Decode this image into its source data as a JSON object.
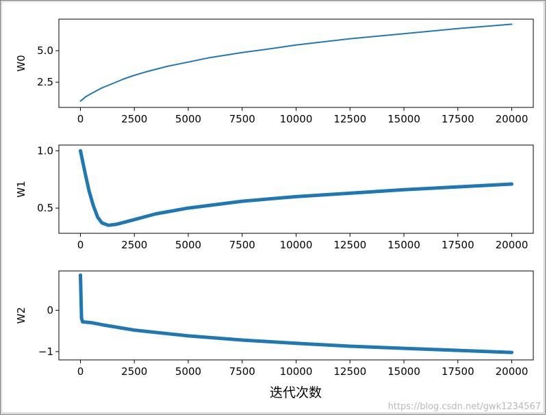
{
  "chart_data": [
    {
      "type": "line",
      "ylabel": "W0",
      "xlim": [
        -1000,
        21000
      ],
      "ylim": [
        0.5,
        7.5
      ],
      "xticks": [
        "0",
        "2500",
        "5000",
        "7500",
        "10000",
        "12500",
        "15000",
        "17500",
        "20000"
      ],
      "yticks": [
        "2.5",
        "5.0"
      ],
      "series": [
        {
          "color": "#1f77b4",
          "points": [
            [
              0,
              1.0
            ],
            [
              250,
              1.35
            ],
            [
              500,
              1.6
            ],
            [
              1000,
              2.05
            ],
            [
              1500,
              2.4
            ],
            [
              2000,
              2.75
            ],
            [
              2500,
              3.05
            ],
            [
              3000,
              3.3
            ],
            [
              4000,
              3.75
            ],
            [
              5000,
              4.1
            ],
            [
              6000,
              4.45
            ],
            [
              7500,
              4.85
            ],
            [
              9000,
              5.2
            ],
            [
              10000,
              5.45
            ],
            [
              12500,
              5.95
            ],
            [
              15000,
              6.35
            ],
            [
              17500,
              6.75
            ],
            [
              20000,
              7.1
            ]
          ]
        }
      ]
    },
    {
      "type": "line",
      "ylabel": "W1",
      "xlim": [
        -1000,
        21000
      ],
      "ylim": [
        0.28,
        1.05
      ],
      "xticks": [
        "0",
        "2500",
        "5000",
        "7500",
        "10000",
        "12500",
        "15000",
        "17500",
        "20000"
      ],
      "yticks": [
        "0.5",
        "1.0"
      ],
      "series": [
        {
          "color": "#1f77b4",
          "points": [
            [
              0,
              1.0
            ],
            [
              200,
              0.82
            ],
            [
              400,
              0.65
            ],
            [
              600,
              0.52
            ],
            [
              800,
              0.42
            ],
            [
              1000,
              0.37
            ],
            [
              1300,
              0.35
            ],
            [
              1700,
              0.36
            ],
            [
              2500,
              0.4
            ],
            [
              3500,
              0.45
            ],
            [
              5000,
              0.5
            ],
            [
              7500,
              0.56
            ],
            [
              10000,
              0.6
            ],
            [
              12500,
              0.63
            ],
            [
              15000,
              0.66
            ],
            [
              17500,
              0.685
            ],
            [
              20000,
              0.71
            ]
          ]
        }
      ]
    },
    {
      "type": "line",
      "ylabel": "W2",
      "xlim": [
        -1000,
        21000
      ],
      "ylim": [
        -1.2,
        0.95
      ],
      "xticks": [
        "0",
        "2500",
        "5000",
        "7500",
        "10000",
        "12500",
        "15000",
        "17500",
        "20000"
      ],
      "yticks": [
        "−1",
        "0"
      ],
      "series": [
        {
          "color": "#1f77b4",
          "points": [
            [
              0,
              0.85
            ],
            [
              50,
              -0.2
            ],
            [
              100,
              -0.28
            ],
            [
              500,
              -0.3
            ],
            [
              1000,
              -0.35
            ],
            [
              2500,
              -0.48
            ],
            [
              5000,
              -0.62
            ],
            [
              7500,
              -0.72
            ],
            [
              10000,
              -0.8
            ],
            [
              12500,
              -0.87
            ],
            [
              15000,
              -0.92
            ],
            [
              17500,
              -0.97
            ],
            [
              20000,
              -1.02
            ]
          ]
        }
      ]
    }
  ],
  "xlabel": "迭代次数",
  "watermark": "https://blog.csdn.net/gwk1234567"
}
